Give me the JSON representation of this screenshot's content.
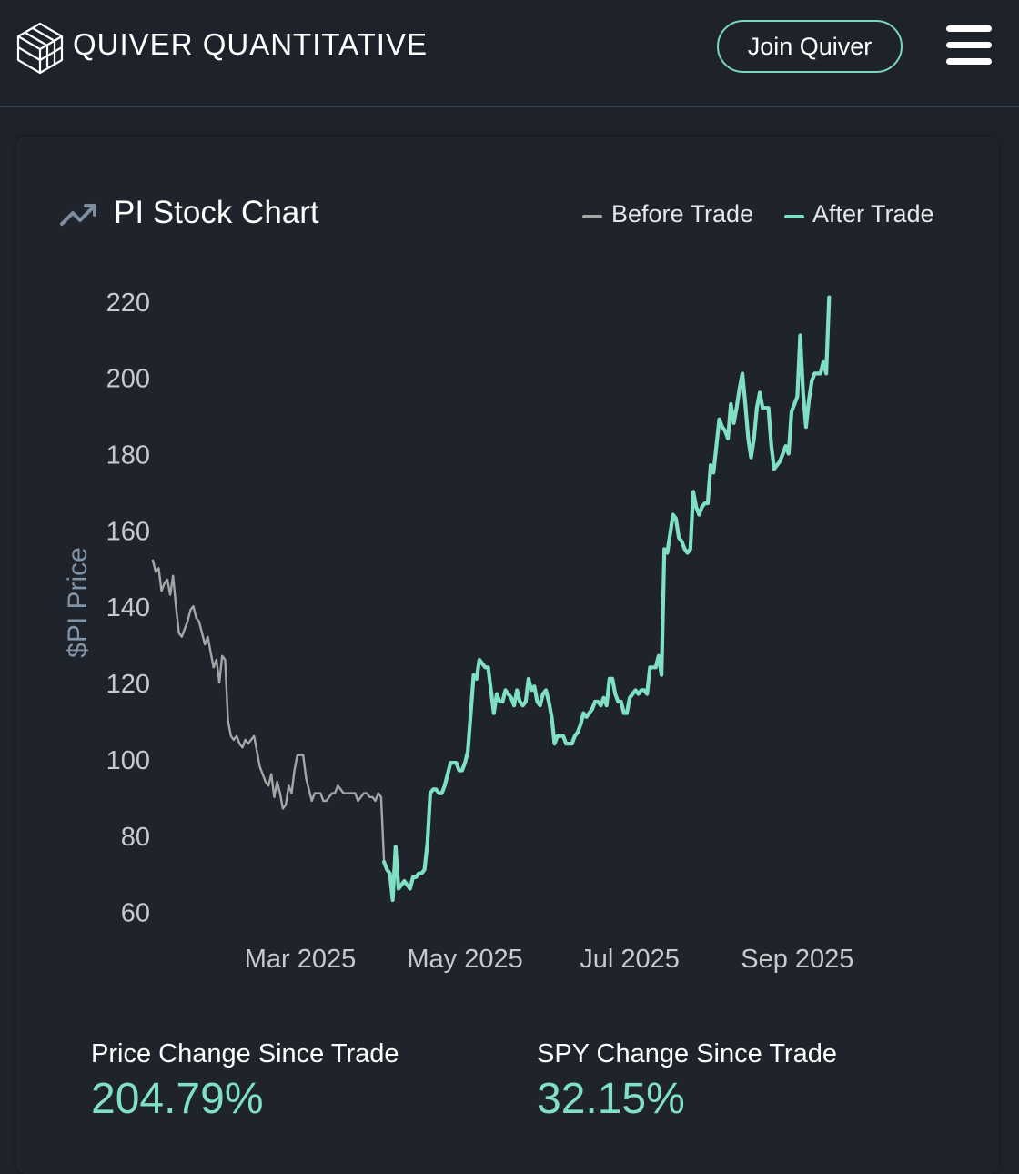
{
  "header": {
    "brand": "QUIVER QUANTITATIVE",
    "join_label": "Join Quiver"
  },
  "card": {
    "title": "PI Stock Chart",
    "legend_before": "Before Trade",
    "legend_after": "After Trade"
  },
  "stats": {
    "price_change_label": "Price Change Since Trade",
    "price_change_value": "204.79%",
    "spy_change_label": "SPY Change Since Trade",
    "spy_change_value": "32.15%"
  },
  "colors": {
    "before": "#a5a6a8",
    "after": "#7fe0c3",
    "axis_text": "#c8c9cb",
    "ylabel": "#8193a6"
  },
  "chart_data": {
    "type": "line",
    "title": "PI Stock Chart",
    "xlabel": "",
    "ylabel": "$PI Price",
    "ylim": [
      60,
      222
    ],
    "xlim": [
      0,
      272
    ],
    "yticks": [
      60,
      80,
      100,
      120,
      140,
      160,
      180,
      200,
      220
    ],
    "xticks": [
      {
        "label": "Mar 2025",
        "value": 51
      },
      {
        "label": "May 2025",
        "value": 108
      },
      {
        "label": "Jul 2025",
        "value": 165
      },
      {
        "label": "Sep 2025",
        "value": 223
      }
    ],
    "grid": false,
    "legend": "top-right",
    "series": [
      {
        "name": "Before Trade",
        "points": [
          [
            0,
            152
          ],
          [
            1,
            149
          ],
          [
            2,
            150
          ],
          [
            3,
            144
          ],
          [
            4,
            146
          ],
          [
            5,
            147
          ],
          [
            6,
            143
          ],
          [
            7,
            148
          ],
          [
            8,
            140
          ],
          [
            9,
            133
          ],
          [
            10,
            132
          ],
          [
            11,
            134
          ],
          [
            12,
            136
          ],
          [
            13,
            139
          ],
          [
            14,
            140
          ],
          [
            15,
            137
          ],
          [
            16,
            136
          ],
          [
            17,
            133
          ],
          [
            18,
            130
          ],
          [
            19,
            132
          ],
          [
            20,
            128
          ],
          [
            21,
            124
          ],
          [
            22,
            126
          ],
          [
            23,
            120
          ],
          [
            24,
            127
          ],
          [
            25,
            126
          ],
          [
            26,
            110
          ],
          [
            27,
            106
          ],
          [
            28,
            105
          ],
          [
            29,
            106
          ],
          [
            30,
            104
          ],
          [
            31,
            103
          ],
          [
            32,
            105
          ],
          [
            33,
            104
          ],
          [
            34,
            105
          ],
          [
            35,
            106
          ],
          [
            36,
            102
          ],
          [
            37,
            98
          ],
          [
            38,
            96
          ],
          [
            39,
            94
          ],
          [
            40,
            93
          ],
          [
            41,
            96
          ],
          [
            42,
            90
          ],
          [
            43,
            94
          ],
          [
            44,
            91
          ],
          [
            45,
            87
          ],
          [
            46,
            88
          ],
          [
            47,
            93
          ],
          [
            48,
            91
          ],
          [
            49,
            97
          ],
          [
            50,
            101
          ],
          [
            51,
            101
          ],
          [
            52,
            101
          ],
          [
            53,
            95
          ],
          [
            54,
            92
          ],
          [
            55,
            89
          ],
          [
            56,
            91
          ],
          [
            57,
            91
          ],
          [
            58,
            91
          ],
          [
            59,
            89
          ],
          [
            60,
            89
          ],
          [
            61,
            90
          ],
          [
            62,
            91
          ],
          [
            63,
            91
          ],
          [
            64,
            93
          ],
          [
            65,
            92
          ],
          [
            66,
            91
          ],
          [
            67,
            91
          ],
          [
            68,
            91
          ],
          [
            69,
            91
          ],
          [
            70,
            91
          ],
          [
            71,
            89
          ],
          [
            72,
            90
          ],
          [
            73,
            91
          ],
          [
            74,
            91
          ],
          [
            75,
            90
          ],
          [
            76,
            90
          ],
          [
            77,
            89
          ],
          [
            78,
            91
          ],
          [
            79,
            90
          ],
          [
            80,
            73
          ]
        ]
      },
      {
        "name": "After Trade",
        "points": [
          [
            80,
            73
          ],
          [
            81,
            71
          ],
          [
            82,
            70
          ],
          [
            83,
            63
          ],
          [
            84,
            77
          ],
          [
            85,
            66
          ],
          [
            86,
            67
          ],
          [
            87,
            68
          ],
          [
            88,
            67
          ],
          [
            89,
            66
          ],
          [
            90,
            69
          ],
          [
            91,
            69
          ],
          [
            92,
            70
          ],
          [
            93,
            70
          ],
          [
            94,
            71
          ],
          [
            95,
            78
          ],
          [
            96,
            91
          ],
          [
            97,
            92
          ],
          [
            98,
            92
          ],
          [
            99,
            91
          ],
          [
            100,
            91
          ],
          [
            101,
            93
          ],
          [
            102,
            96
          ],
          [
            103,
            99
          ],
          [
            104,
            99
          ],
          [
            105,
            99
          ],
          [
            106,
            97
          ],
          [
            107,
            97
          ],
          [
            108,
            99
          ],
          [
            109,
            102
          ],
          [
            110,
            112
          ],
          [
            111,
            122
          ],
          [
            112,
            121
          ],
          [
            113,
            126
          ],
          [
            114,
            125
          ],
          [
            115,
            124
          ],
          [
            116,
            124
          ],
          [
            117,
            118
          ],
          [
            118,
            112
          ],
          [
            119,
            117
          ],
          [
            120,
            115
          ],
          [
            121,
            115
          ],
          [
            122,
            118
          ],
          [
            123,
            117
          ],
          [
            124,
            116
          ],
          [
            125,
            114
          ],
          [
            126,
            118
          ],
          [
            127,
            115
          ],
          [
            128,
            114
          ],
          [
            129,
            115
          ],
          [
            130,
            121
          ],
          [
            131,
            118
          ],
          [
            132,
            119
          ],
          [
            133,
            115
          ],
          [
            134,
            114
          ],
          [
            135,
            117
          ],
          [
            136,
            118
          ],
          [
            137,
            115
          ],
          [
            138,
            111
          ],
          [
            139,
            104
          ],
          [
            140,
            106
          ],
          [
            141,
            106
          ],
          [
            142,
            106
          ],
          [
            143,
            104
          ],
          [
            144,
            104
          ],
          [
            145,
            104
          ],
          [
            146,
            106
          ],
          [
            147,
            107
          ],
          [
            148,
            109
          ],
          [
            149,
            112
          ],
          [
            150,
            111
          ],
          [
            151,
            112
          ],
          [
            152,
            113
          ],
          [
            153,
            115
          ],
          [
            154,
            115
          ],
          [
            155,
            114
          ],
          [
            156,
            116
          ],
          [
            157,
            114
          ],
          [
            158,
            121
          ],
          [
            159,
            121
          ],
          [
            160,
            117
          ],
          [
            161,
            115
          ],
          [
            162,
            115
          ],
          [
            163,
            112
          ],
          [
            164,
            112
          ],
          [
            165,
            116
          ],
          [
            166,
            117
          ],
          [
            167,
            118
          ],
          [
            168,
            117
          ],
          [
            169,
            118
          ],
          [
            170,
            118
          ],
          [
            171,
            117
          ],
          [
            172,
            124
          ],
          [
            173,
            124
          ],
          [
            174,
            124
          ],
          [
            175,
            127
          ],
          [
            176,
            122
          ],
          [
            177,
            155
          ],
          [
            178,
            154
          ],
          [
            179,
            159
          ],
          [
            180,
            164
          ],
          [
            181,
            163
          ],
          [
            182,
            158
          ],
          [
            183,
            157
          ],
          [
            184,
            155
          ],
          [
            185,
            154
          ],
          [
            186,
            155
          ],
          [
            187,
            170
          ],
          [
            188,
            166
          ],
          [
            189,
            164
          ],
          [
            190,
            166
          ],
          [
            191,
            167
          ],
          [
            192,
            167
          ],
          [
            193,
            177
          ],
          [
            194,
            175
          ],
          [
            195,
            182
          ],
          [
            196,
            189
          ],
          [
            197,
            187
          ],
          [
            198,
            186
          ],
          [
            199,
            184
          ],
          [
            200,
            193
          ],
          [
            201,
            188
          ],
          [
            202,
            192
          ],
          [
            203,
            197
          ],
          [
            204,
            201
          ],
          [
            205,
            193
          ],
          [
            206,
            184
          ],
          [
            207,
            179
          ],
          [
            208,
            184
          ],
          [
            209,
            192
          ],
          [
            210,
            196
          ],
          [
            211,
            192
          ],
          [
            212,
            192
          ],
          [
            213,
            192
          ],
          [
            214,
            182
          ],
          [
            215,
            176
          ],
          [
            216,
            177
          ],
          [
            217,
            178
          ],
          [
            218,
            180
          ],
          [
            219,
            182
          ],
          [
            220,
            180
          ],
          [
            221,
            191
          ],
          [
            222,
            193
          ],
          [
            223,
            195
          ],
          [
            224,
            211
          ],
          [
            225,
            196
          ],
          [
            226,
            187
          ],
          [
            227,
            194
          ],
          [
            228,
            199
          ],
          [
            229,
            201
          ],
          [
            230,
            201
          ],
          [
            231,
            201
          ],
          [
            232,
            204
          ],
          [
            233,
            201
          ],
          [
            234,
            221
          ]
        ]
      }
    ]
  }
}
